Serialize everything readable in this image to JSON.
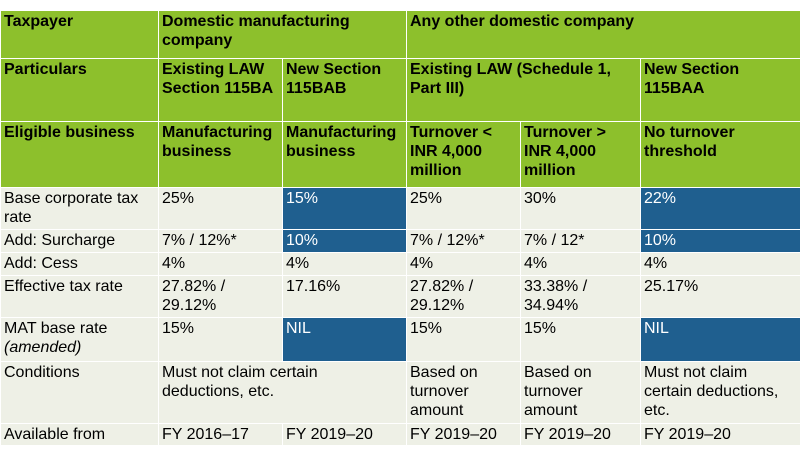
{
  "header": {
    "taxpayer": "Taxpayer",
    "domestic_mfg": "Domestic manufacturing company",
    "other_domestic": "Any other domestic company",
    "particulars": "Particulars",
    "existing_115ba": "Existing LAW Section 115BA",
    "new_115bab": "New Section 115BAB",
    "existing_sched": "Existing LAW (Schedule 1, Part III)",
    "new_115baa": "New Section 115BAA",
    "eligible_business": "Eligible business",
    "mfg_business_1": "Manufacturing business",
    "mfg_business_2": "Manufacturing business",
    "turnover_lt": "Turnover < INR 4,000 million",
    "turnover_gt": "Turnover > INR 4,000 million",
    "no_threshold": "No turnover threshold"
  },
  "rows": {
    "base_rate": {
      "label": "Base corporate tax rate",
      "c1": "25%",
      "c2": "15%",
      "c3": "25%",
      "c4": "30%",
      "c5": "22%"
    },
    "surcharge": {
      "label": "Add: Surcharge",
      "c1": "7% / 12%*",
      "c2": "10%",
      "c3": "7% / 12%*",
      "c4": "7% / 12*",
      "c5": "10%"
    },
    "cess": {
      "label": "Add: Cess",
      "c1": "4%",
      "c2": "4%",
      "c3": "4%",
      "c4": "4%",
      "c5": "4%"
    },
    "effective": {
      "label": "Effective tax rate",
      "c1": "27.82% / 29.12%",
      "c2": "17.16%",
      "c3": "27.82% / 29.12%",
      "c4": "33.38% / 34.94%",
      "c5": "25.17%"
    },
    "mat": {
      "label": "MAT base rate",
      "label_note": "(amended)",
      "c1": "15%",
      "c2": "NIL",
      "c3": "15%",
      "c4": "15%",
      "c5": "NIL"
    },
    "conditions": {
      "label": "Conditions",
      "c12": "Must not claim certain deductions, etc.",
      "c3": "Based on turnover amount",
      "c4": "Based on turnover amount",
      "c5": "Must not claim certain deductions, etc."
    },
    "available": {
      "label": "Available from",
      "c1": "FY 2016–17",
      "c2": "FY 2019–20",
      "c3": "FY 2019–20",
      "c4": "FY 2019–20",
      "c5": "FY 2019–20"
    }
  },
  "colors": {
    "green": "#8dc02c",
    "light": "#eef0e6",
    "blue": "#1f5f8f"
  }
}
